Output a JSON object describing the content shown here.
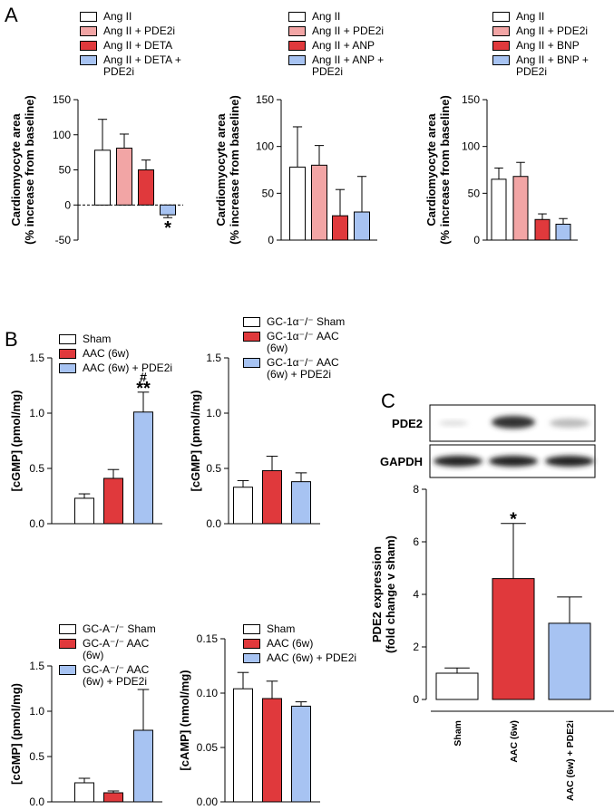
{
  "panel_labels": [
    "A",
    "B",
    "C"
  ],
  "blot_labels": [
    "PDE2",
    "GAPDH"
  ],
  "chart_data": [
    {
      "type": "bar",
      "ylabel": [
        "Cardiomyocyte area",
        "(% increase from baseline)"
      ],
      "ylim": [
        -50,
        150
      ],
      "yticks": [
        -50,
        0,
        50,
        100,
        150
      ],
      "series": [
        {
          "name": "Ang II",
          "color": "#ffffff",
          "values": [
            78
          ],
          "errors": [
            44
          ]
        },
        {
          "name": "Ang II + PDE2i",
          "color": "#f2a5a5",
          "values": [
            81
          ],
          "errors": [
            20
          ]
        },
        {
          "name": "Ang II + DETA",
          "color": "#e0393c",
          "values": [
            50
          ],
          "errors": [
            14
          ]
        },
        {
          "name": "Ang II + DETA + PDE2i",
          "color": "#a7c3f2",
          "values": [
            -14
          ],
          "errors": [
            4
          ],
          "annotations": [
            "*"
          ]
        }
      ]
    },
    {
      "type": "bar",
      "ylabel": [
        "Cardiomyocyte area",
        "(% increase from baseline)"
      ],
      "ylim": [
        0,
        150
      ],
      "yticks": [
        0,
        50,
        100,
        150
      ],
      "series": [
        {
          "name": "Ang II",
          "color": "#ffffff",
          "values": [
            78
          ],
          "errors": [
            43
          ]
        },
        {
          "name": "Ang II + PDE2i",
          "color": "#f2a5a5",
          "values": [
            80
          ],
          "errors": [
            21
          ]
        },
        {
          "name": "Ang II + ANP",
          "color": "#e0393c",
          "values": [
            26
          ],
          "errors": [
            28
          ]
        },
        {
          "name": "Ang II + ANP + PDE2i",
          "color": "#a7c3f2",
          "values": [
            30
          ],
          "errors": [
            38
          ]
        }
      ]
    },
    {
      "type": "bar",
      "ylabel": [
        "Cardiomyocyte area",
        "(% increase from baseline)"
      ],
      "ylim": [
        0,
        150
      ],
      "yticks": [
        0,
        50,
        100,
        150
      ],
      "series": [
        {
          "name": "Ang II",
          "color": "#ffffff",
          "values": [
            65
          ],
          "errors": [
            12
          ]
        },
        {
          "name": "Ang II + PDE2i",
          "color": "#f2a5a5",
          "values": [
            68
          ],
          "errors": [
            15
          ]
        },
        {
          "name": "Ang II + BNP",
          "color": "#e0393c",
          "values": [
            22
          ],
          "errors": [
            6
          ]
        },
        {
          "name": "Ang II + BNP + PDE2i",
          "color": "#a7c3f2",
          "values": [
            17
          ],
          "errors": [
            6
          ]
        }
      ]
    },
    {
      "type": "bar",
      "ylabel": [
        "[cGMP] (pmol/mg)"
      ],
      "ylim": [
        0,
        1.5
      ],
      "yticks": [
        {
          "value": 0,
          "label": "0.0"
        },
        0.5,
        {
          "value": 1,
          "label": "1.0"
        },
        1.5
      ],
      "series": [
        {
          "name": "Sham",
          "color": "#ffffff",
          "values": [
            0.23
          ],
          "errors": [
            0.04
          ]
        },
        {
          "name": "AAC (6w)",
          "color": "#e0393c",
          "values": [
            0.41
          ],
          "errors": [
            0.08
          ]
        },
        {
          "name": "AAC (6w) + PDE2i",
          "color": "#a7c3f2",
          "values": [
            1.01
          ],
          "errors": [
            0.18
          ],
          "annotations": [
            "**",
            "#"
          ]
        }
      ]
    },
    {
      "type": "bar",
      "ylabel": [
        "[cGMP] (pmol/mg)"
      ],
      "ylim": [
        0,
        1.5
      ],
      "yticks": [
        {
          "value": 0,
          "label": "0.0"
        },
        0.5,
        {
          "value": 1,
          "label": "1.0"
        },
        1.5
      ],
      "series": [
        {
          "name": "GC-1α⁻/⁻ Sham",
          "color": "#ffffff",
          "values": [
            0.33
          ],
          "errors": [
            0.06
          ]
        },
        {
          "name": "GC-1α⁻/⁻ AAC (6w)",
          "color": "#e0393c",
          "values": [
            0.48
          ],
          "errors": [
            0.13
          ]
        },
        {
          "name": "GC-1α⁻/⁻ AAC (6w) + PDE2i",
          "color": "#a7c3f2",
          "values": [
            0.38
          ],
          "errors": [
            0.08
          ]
        }
      ]
    },
    {
      "type": "bar",
      "ylabel": [
        "[cGMP] (pmol/mg)"
      ],
      "ylim": [
        0,
        1.5
      ],
      "yticks": [
        {
          "value": 0,
          "label": "0.0"
        },
        0.5,
        {
          "value": 1,
          "label": "1.0"
        },
        1.5
      ],
      "series": [
        {
          "name": "GC-A⁻/⁻ Sham",
          "color": "#ffffff",
          "values": [
            0.21
          ],
          "errors": [
            0.05
          ]
        },
        {
          "name": "GC-A⁻/⁻ AAC (6w)",
          "color": "#e0393c",
          "values": [
            0.1
          ],
          "errors": [
            0.02
          ]
        },
        {
          "name": "GC-A⁻/⁻ AAC (6w) + PDE2i",
          "color": "#a7c3f2",
          "values": [
            0.79
          ],
          "errors": [
            0.45
          ]
        }
      ]
    },
    {
      "type": "bar",
      "ylabel": [
        "[cAMP] (nmol/mg)"
      ],
      "ylim": [
        0,
        0.15
      ],
      "yticks": [
        {
          "value": 0,
          "label": "0.00"
        },
        0.05,
        {
          "value": 0.1,
          "label": "0.10"
        },
        0.15
      ],
      "series": [
        {
          "name": "Sham",
          "color": "#ffffff",
          "values": [
            0.104
          ],
          "errors": [
            0.015
          ]
        },
        {
          "name": "AAC (6w)",
          "color": "#e0393c",
          "values": [
            0.095
          ],
          "errors": [
            0.016
          ]
        },
        {
          "name": "AAC (6w) + PDE2i",
          "color": "#a7c3f2",
          "values": [
            0.088
          ],
          "errors": [
            0.004
          ]
        }
      ]
    },
    {
      "type": "bar",
      "ylabel": [
        "PDE2 expression",
        "(fold change v sham)"
      ],
      "ylim": [
        0,
        8
      ],
      "yticks": [
        0,
        2,
        4,
        6,
        8
      ],
      "categories": [
        "Sham",
        "AAC (6w)",
        "AAC (6w) + PDE2i"
      ],
      "colors": [
        "#ffffff",
        "#e0393c",
        "#a7c3f2"
      ],
      "values": [
        1.0,
        4.6,
        2.9
      ],
      "errors": [
        0.2,
        2.1,
        1.0
      ],
      "annotations": [
        null,
        "*",
        null
      ]
    }
  ]
}
